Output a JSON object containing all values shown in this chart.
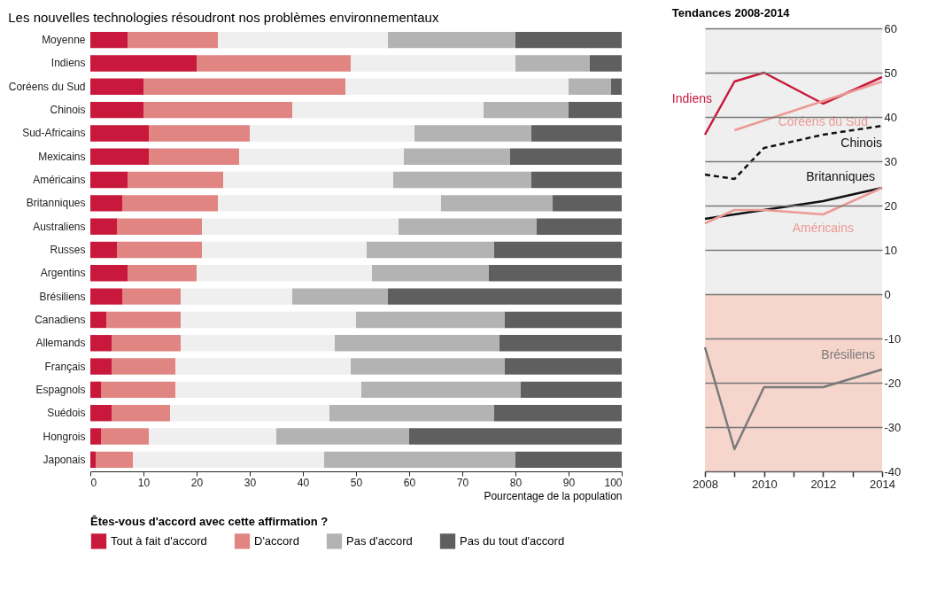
{
  "chart_data": [
    {
      "type": "bar",
      "orientation": "horizontal",
      "stacked": true,
      "title": "Les nouvelles technologies résoudront nos problèmes environnementaux",
      "xlabel": "Pourcentage de la population",
      "legend_title": "Êtes-vous d'accord avec cette affirmation ?",
      "legend": "bottom",
      "xlim": [
        0,
        100
      ],
      "xticks": [
        0,
        10,
        20,
        30,
        40,
        50,
        60,
        70,
        80,
        90,
        100
      ],
      "categories": [
        "Moyenne",
        "Indiens",
        "Coréens du Sud",
        "Chinois",
        "Sud-Africains",
        "Mexicains",
        "Américains",
        "Britanniques",
        "Australiens",
        "Russes",
        "Argentins",
        "Brésiliens",
        "Canadiens",
        "Allemands",
        "Français",
        "Espagnols",
        "Suédois",
        "Hongrois",
        "Japonais"
      ],
      "series": [
        {
          "name": "Tout à fait d'accord",
          "color": "#c8193c",
          "values": [
            7,
            20,
            10,
            10,
            11,
            11,
            7,
            6,
            5,
            5,
            7,
            6,
            3,
            4,
            4,
            2,
            4,
            2,
            1
          ]
        },
        {
          "name": "D'accord",
          "color": "#e08582",
          "values": [
            17,
            29,
            38,
            28,
            19,
            17,
            18,
            18,
            16,
            16,
            13,
            11,
            14,
            13,
            12,
            14,
            11,
            9,
            7
          ]
        },
        {
          "color": "#efefef",
          "values": [
            32,
            31,
            42,
            36,
            31,
            31,
            32,
            42,
            37,
            31,
            33,
            21,
            33,
            29,
            33,
            35,
            30,
            24,
            36
          ]
        },
        {
          "name": "Pas d'accord",
          "color": "#b3b3b3",
          "values": [
            24,
            14,
            8,
            16,
            22,
            20,
            26,
            21,
            26,
            24,
            22,
            18,
            28,
            31,
            29,
            30,
            31,
            25,
            36
          ]
        },
        {
          "name": "Pas du tout d'accord",
          "color": "#5f5f5f",
          "values": [
            20,
            6,
            2,
            10,
            17,
            21,
            17,
            13,
            16,
            24,
            25,
            44,
            22,
            23,
            22,
            19,
            24,
            40,
            20
          ]
        }
      ]
    },
    {
      "type": "line",
      "title": "Tendances 2008-2014",
      "xlim": [
        2008,
        2014
      ],
      "xticks": [
        2008,
        {
          "value": 2009,
          "label": null
        },
        2010,
        {
          "value": 2011,
          "label": null
        },
        2012,
        {
          "value": 2013,
          "label": null
        },
        2014
      ],
      "ylim": [
        -40,
        60
      ],
      "yticks": [
        -40,
        -30,
        -20,
        -10,
        0,
        10,
        20,
        30,
        40,
        50,
        60
      ],
      "grid": "y",
      "bands": [
        {
          "axis": "y",
          "from": 0,
          "to": 60,
          "color": "#efefef"
        },
        {
          "axis": "y",
          "from": -40,
          "to": 0,
          "color": "#f5d5cc"
        }
      ],
      "series": [
        {
          "name": "Indiens",
          "color": "#c8193c",
          "x": [
            2008,
            2009,
            2010,
            2012,
            2014
          ],
          "values": [
            36,
            48,
            50,
            43,
            49
          ]
        },
        {
          "name": "Coréens du Sud",
          "color": "#eb9a95",
          "x": [
            2009,
            2014
          ],
          "values": [
            37,
            48
          ]
        },
        {
          "name": "Chinois",
          "color": "#111111",
          "line_style": "dashed",
          "x": [
            2008,
            2009,
            2010,
            2012,
            2014
          ],
          "values": [
            27,
            26,
            33,
            36,
            38
          ]
        },
        {
          "name": "Britanniques",
          "color": "#111111",
          "x": [
            2008,
            2010,
            2012,
            2014
          ],
          "values": [
            17,
            19,
            21,
            24
          ]
        },
        {
          "name": "Américains",
          "color": "#eb9a95",
          "x": [
            2008,
            2009,
            2010,
            2012,
            2014
          ],
          "values": [
            16,
            19,
            19,
            18,
            24
          ]
        },
        {
          "name": "Brésiliens",
          "color": "#7a7a7a",
          "x": [
            2008,
            2009,
            2010,
            2012,
            2014
          ],
          "values": [
            -12,
            -35,
            -21,
            -21,
            -17
          ]
        }
      ]
    }
  ]
}
